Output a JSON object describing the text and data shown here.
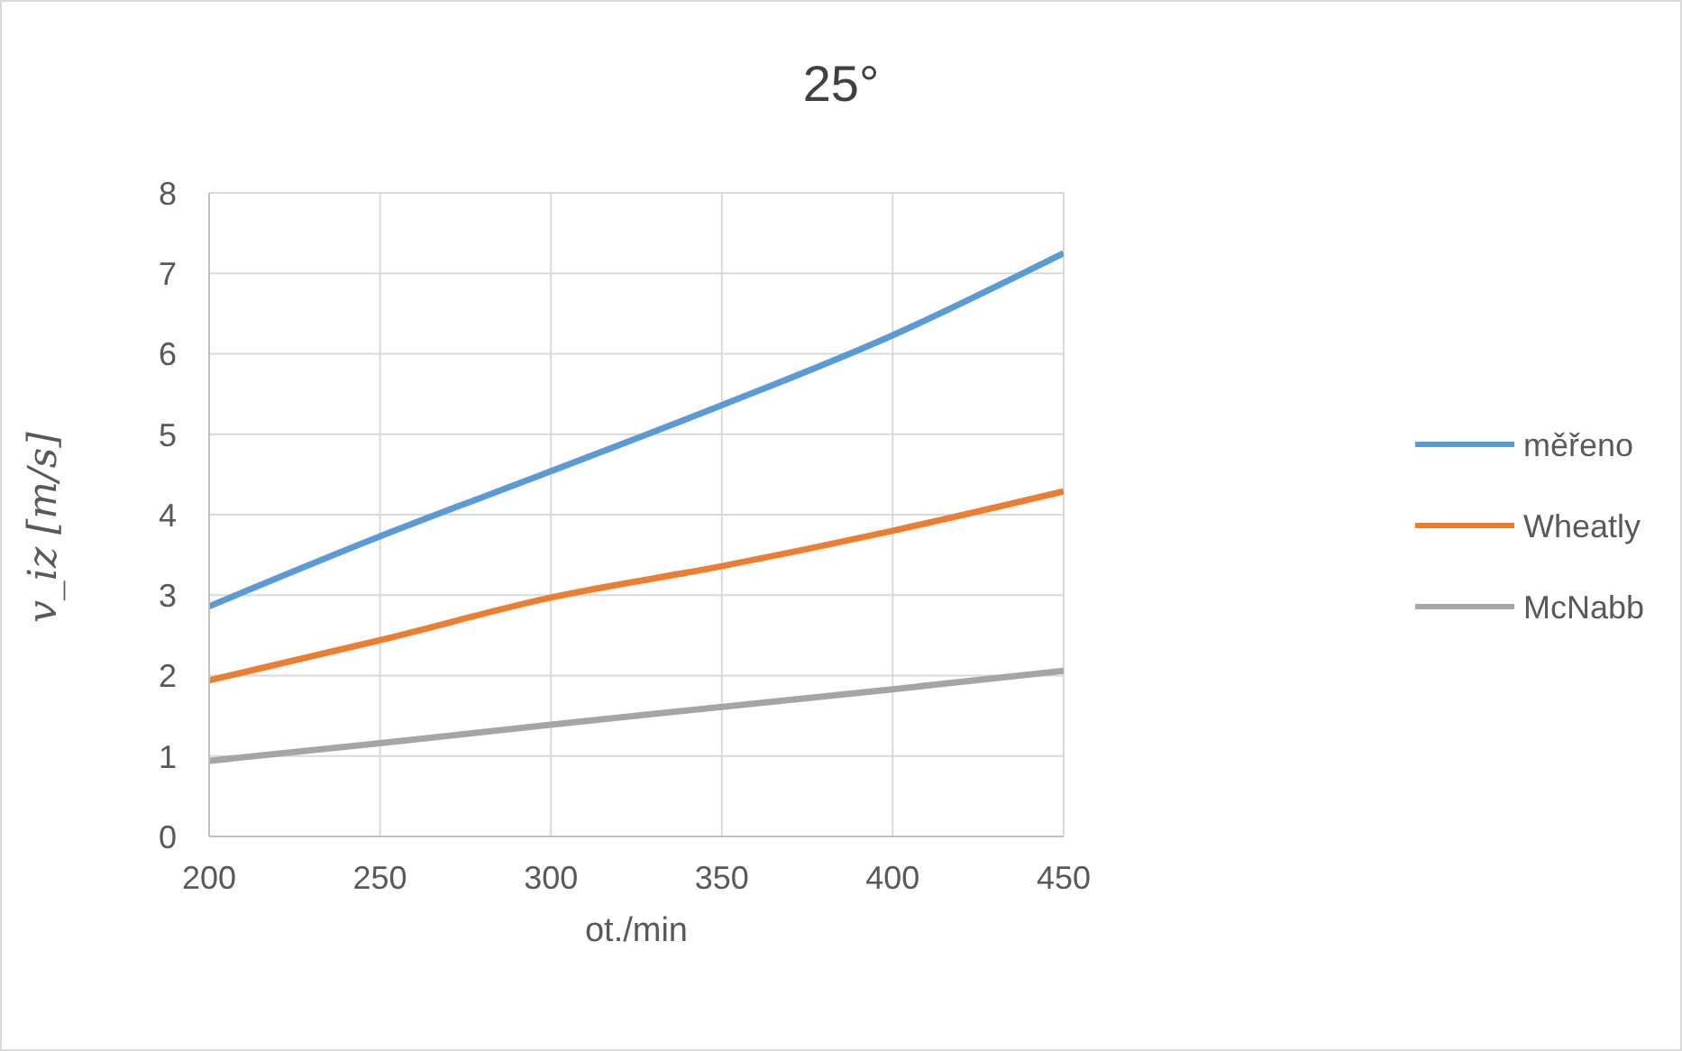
{
  "chart_data": {
    "type": "line",
    "title": "25°",
    "xlabel": "ot./min",
    "ylabel": "v_iz  [m/s]",
    "x": [
      200,
      250,
      300,
      350,
      400,
      450
    ],
    "series": [
      {
        "name": "měřeno",
        "color": "#5b9bd5",
        "values": [
          2.86,
          3.73,
          4.54,
          5.36,
          6.23,
          7.25
        ]
      },
      {
        "name": "Wheatly",
        "color": "#ed7d31",
        "values": [
          1.94,
          2.44,
          2.97,
          3.36,
          3.8,
          4.29
        ]
      },
      {
        "name": "McNabb",
        "color": "#a5a5a5",
        "values": [
          0.94,
          1.16,
          1.39,
          1.61,
          1.83,
          2.06
        ]
      }
    ],
    "xlim": [
      200,
      450
    ],
    "xticks": [
      200,
      250,
      300,
      350,
      400,
      450
    ],
    "ylim": [
      0,
      8
    ],
    "yticks": [
      0,
      1,
      2,
      3,
      4,
      5,
      6,
      7,
      8
    ],
    "grid": true,
    "legend": "right",
    "marker": "none",
    "line_style": "solid"
  }
}
